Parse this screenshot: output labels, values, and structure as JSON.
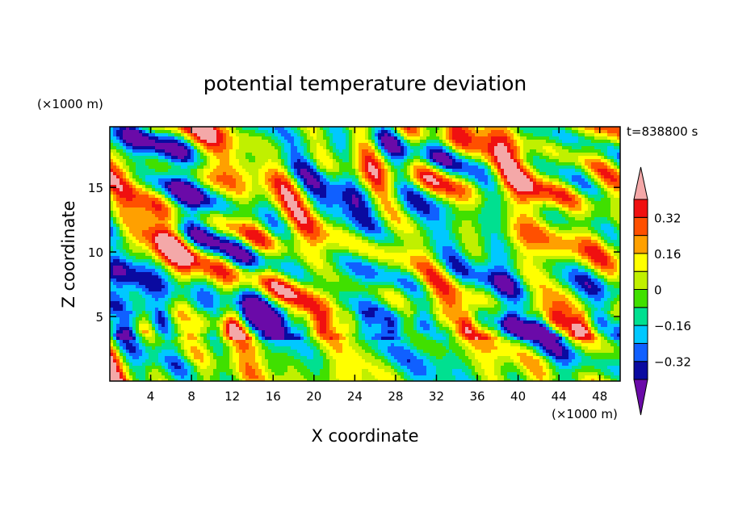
{
  "chart_data": {
    "type": "heatmap",
    "title": "potential temperature deviation",
    "xlabel": "X coordinate",
    "ylabel": "Z coordinate",
    "x_unit_label": "(×1000 m)",
    "y_unit_label": "(×1000 m)",
    "time_label": "t=838800 s",
    "xlim": [
      0,
      50
    ],
    "ylim": [
      0,
      19.7
    ],
    "x_ticks": [
      4,
      8,
      12,
      16,
      20,
      24,
      28,
      32,
      36,
      40,
      44,
      48
    ],
    "x_tick_labels": [
      "4",
      "8",
      "12",
      "16",
      "20",
      "24",
      "28",
      "32",
      "36",
      "40",
      "44",
      "48"
    ],
    "y_ticks": [
      5,
      10,
      15
    ],
    "y_tick_labels": [
      "5",
      "10",
      "15"
    ],
    "colorbar": {
      "levels": [
        -0.4,
        -0.32,
        -0.24,
        -0.16,
        -0.08,
        0,
        0.08,
        0.16,
        0.24,
        0.32,
        0.4
      ],
      "tick_values": [
        0.32,
        0.16,
        0,
        -0.16,
        -0.32
      ],
      "tick_labels": [
        "0.32",
        "0.16",
        "0",
        "−0.16",
        "−0.32"
      ],
      "colors": [
        "#6a0aa8",
        "#0a0aa0",
        "#1060ff",
        "#00c8ff",
        "#00e090",
        "#40e000",
        "#c0f000",
        "#ffff00",
        "#ffa000",
        "#ff5000",
        "#f01010",
        "#f4a8a8"
      ],
      "extend": "both"
    },
    "grid": false
  }
}
